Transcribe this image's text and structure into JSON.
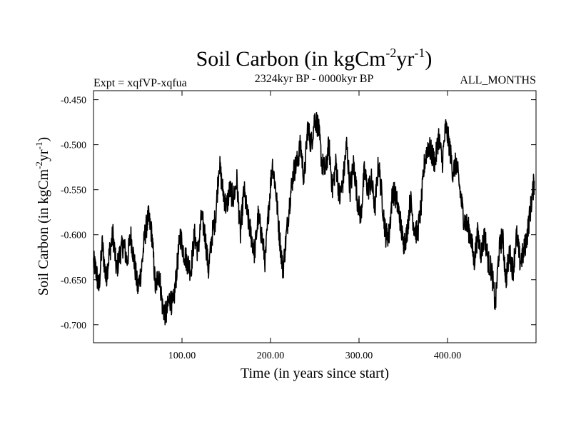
{
  "chart_data": {
    "type": "line",
    "title": {
      "main": "Soil Carbon (in kgCm",
      "exp1": "-2",
      "mid": "yr",
      "exp2": "-1",
      "close": ")"
    },
    "subtitle_left": "Expt = xqfVP-xqfua",
    "subtitle_center": "2324kyr BP - 0000kyr BP",
    "subtitle_right": "ALL_MONTHS",
    "xlabel": "Time (in years since start)",
    "ylabel": {
      "main": "Soil Carbon (in kgCm",
      "exp1": "-2",
      "mid": "yr",
      "exp2": "-1",
      "close": ")"
    },
    "xlim": [
      0,
      500
    ],
    "ylim": [
      -0.72,
      -0.44
    ],
    "xticks": [
      100,
      200,
      300,
      400
    ],
    "xtick_labels": [
      "100.00",
      "200.00",
      "300.00",
      "400.00"
    ],
    "yticks": [
      -0.45,
      -0.5,
      -0.55,
      -0.6,
      -0.65,
      -0.7
    ],
    "ytick_labels": [
      "-0.450",
      "-0.500",
      "-0.550",
      "-0.600",
      "-0.650",
      "-0.700"
    ],
    "series": [
      {
        "name": "Soil Carbon",
        "color": "#000000",
        "x": [
          0,
          3,
          6,
          10,
          14,
          18,
          22,
          26,
          30,
          34,
          38,
          42,
          46,
          50,
          54,
          58,
          62,
          66,
          70,
          74,
          78,
          82,
          86,
          90,
          94,
          98,
          102,
          106,
          110,
          114,
          118,
          122,
          126,
          130,
          134,
          138,
          142,
          146,
          150,
          154,
          158,
          162,
          166,
          170,
          174,
          178,
          182,
          186,
          190,
          194,
          198,
          202,
          206,
          210,
          214,
          218,
          222,
          226,
          230,
          234,
          238,
          242,
          246,
          250,
          254,
          258,
          262,
          266,
          270,
          274,
          278,
          282,
          286,
          290,
          294,
          298,
          302,
          306,
          310,
          314,
          318,
          322,
          326,
          330,
          334,
          338,
          342,
          346,
          350,
          354,
          358,
          362,
          366,
          370,
          374,
          378,
          382,
          386,
          390,
          394,
          398,
          402,
          406,
          410,
          414,
          418,
          422,
          426,
          430,
          434,
          438,
          442,
          446,
          450,
          454,
          458,
          462,
          466,
          470,
          474,
          478,
          482,
          486,
          490,
          494,
          498
        ],
        "y": [
          -0.63,
          -0.64,
          -0.66,
          -0.61,
          -0.65,
          -0.62,
          -0.6,
          -0.64,
          -0.62,
          -0.61,
          -0.63,
          -0.6,
          -0.63,
          -0.66,
          -0.64,
          -0.6,
          -0.58,
          -0.6,
          -0.66,
          -0.64,
          -0.68,
          -0.69,
          -0.67,
          -0.68,
          -0.64,
          -0.6,
          -0.62,
          -0.63,
          -0.64,
          -0.6,
          -0.62,
          -0.58,
          -0.6,
          -0.64,
          -0.6,
          -0.58,
          -0.52,
          -0.55,
          -0.57,
          -0.55,
          -0.56,
          -0.54,
          -0.6,
          -0.55,
          -0.58,
          -0.6,
          -0.62,
          -0.58,
          -0.6,
          -0.63,
          -0.57,
          -0.52,
          -0.55,
          -0.6,
          -0.64,
          -0.6,
          -0.56,
          -0.53,
          -0.52,
          -0.5,
          -0.54,
          -0.48,
          -0.5,
          -0.47,
          -0.48,
          -0.52,
          -0.53,
          -0.5,
          -0.55,
          -0.52,
          -0.56,
          -0.54,
          -0.5,
          -0.55,
          -0.52,
          -0.56,
          -0.58,
          -0.53,
          -0.55,
          -0.54,
          -0.57,
          -0.52,
          -0.56,
          -0.6,
          -0.6,
          -0.55,
          -0.56,
          -0.58,
          -0.61,
          -0.6,
          -0.56,
          -0.59,
          -0.6,
          -0.57,
          -0.52,
          -0.5,
          -0.51,
          -0.52,
          -0.49,
          -0.52,
          -0.48,
          -0.5,
          -0.53,
          -0.52,
          -0.55,
          -0.58,
          -0.59,
          -0.6,
          -0.63,
          -0.6,
          -0.62,
          -0.6,
          -0.63,
          -0.64,
          -0.68,
          -0.62,
          -0.6,
          -0.65,
          -0.62,
          -0.64,
          -0.6,
          -0.63,
          -0.62,
          -0.6,
          -0.57,
          -0.54
        ]
      }
    ]
  }
}
